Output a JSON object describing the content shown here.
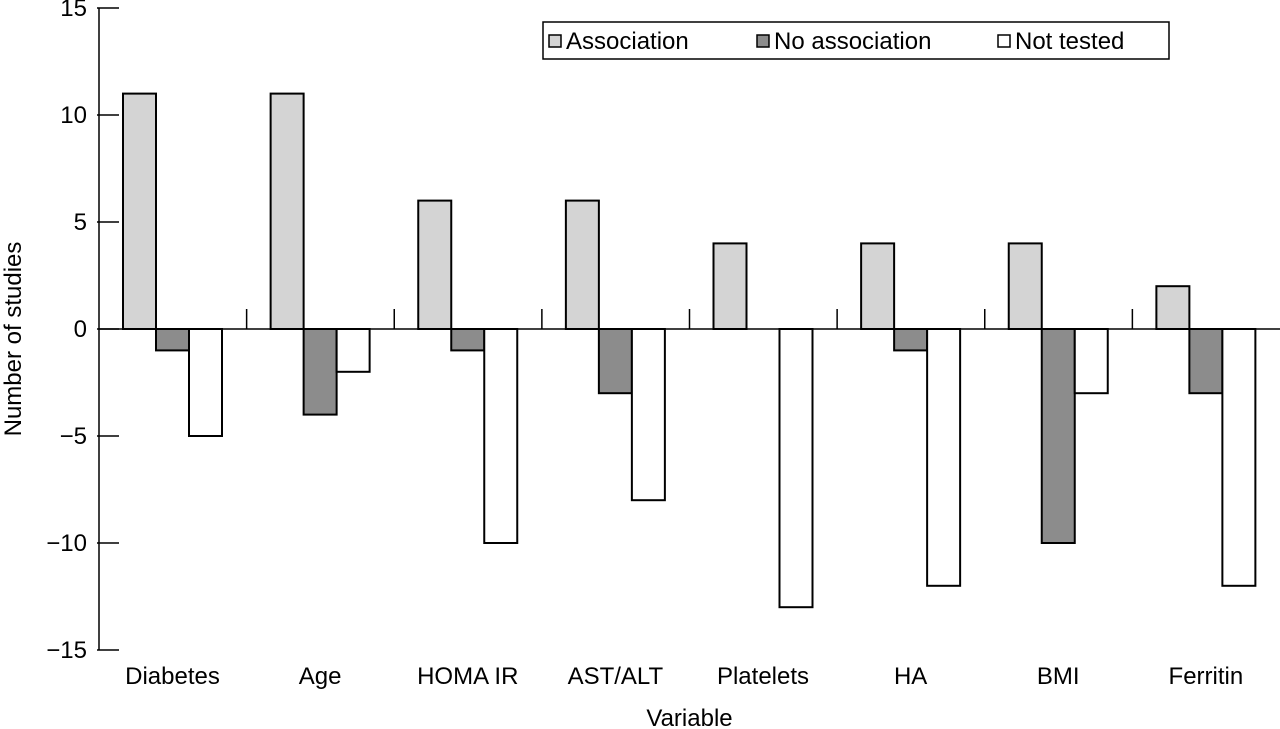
{
  "chart_data": {
    "type": "bar",
    "title": "",
    "xlabel": "Variable",
    "ylabel": "Number of studies",
    "ylim": [
      -15,
      15
    ],
    "yticks": [
      15,
      10,
      5,
      0,
      -5,
      -10,
      -15
    ],
    "ytick_labels": [
      "15",
      "10",
      "5",
      "0",
      "−5",
      "−10",
      "−15"
    ],
    "categories": [
      "Diabetes",
      "Age",
      "HOMA IR",
      "AST/ALT",
      "Platelets",
      "HA",
      "BMI",
      "Ferritin"
    ],
    "series": [
      {
        "name": "Association",
        "color": "#d4d4d4",
        "values": [
          11,
          11,
          6,
          6,
          4,
          4,
          4,
          2
        ]
      },
      {
        "name": "No association",
        "color": "#8c8c8c",
        "values": [
          -1,
          -4,
          -1,
          -3,
          0,
          -1,
          -10,
          -3
        ]
      },
      {
        "name": "Not tested",
        "color": "#ffffff",
        "values": [
          -5,
          -2,
          -10,
          -8,
          -13,
          -12,
          -3,
          -12
        ]
      }
    ],
    "legend_position": "top-right",
    "grid": false
  }
}
